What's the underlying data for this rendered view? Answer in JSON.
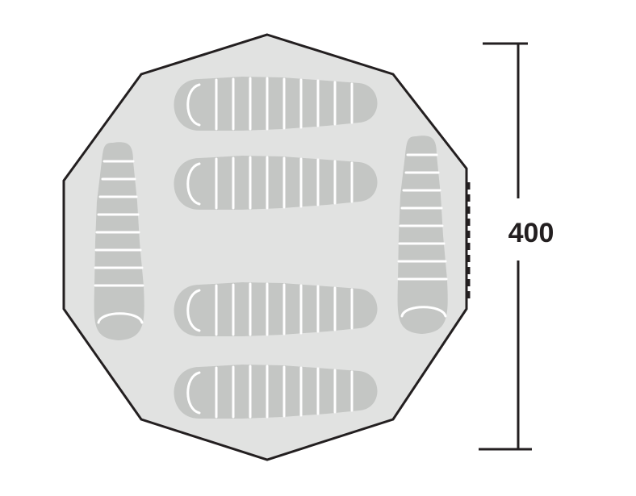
{
  "dimension": {
    "label": "400"
  },
  "colors": {
    "outline": "#231f20",
    "floor": "#e1e2e1",
    "sleeping_bag": "#c4c6c4",
    "segment_line": "#ffffff"
  },
  "sleeping_bags": {
    "horizontal_count": 4,
    "vertical_count": 2,
    "orientations": [
      "horizontal",
      "horizontal",
      "horizontal",
      "horizontal",
      "vertical",
      "vertical"
    ]
  }
}
